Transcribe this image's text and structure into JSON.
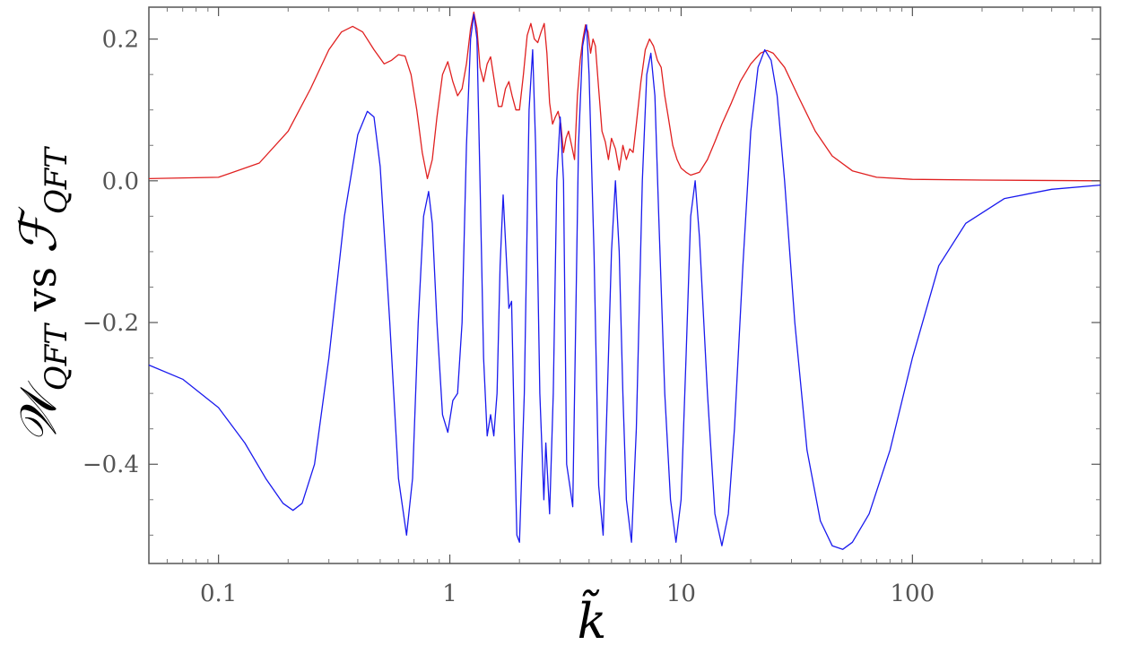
{
  "chart_data": {
    "type": "line",
    "x_scale": "log",
    "xlim": [
      0.05,
      650
    ],
    "ylim": [
      -0.54,
      0.245
    ],
    "xlabel": "k̃",
    "ylabel": {
      "w": "𝒲",
      "w_sub": "QFT",
      "vs": " vs ",
      "f": "ℱ",
      "f_sub": "QFT"
    },
    "x_ticks": [
      {
        "value": 0.1,
        "label": "0.1"
      },
      {
        "value": 1,
        "label": "1"
      },
      {
        "value": 10,
        "label": "10"
      },
      {
        "value": 100,
        "label": "100"
      }
    ],
    "y_ticks": [
      {
        "value": 0.2,
        "label": "0.2"
      },
      {
        "value": 0.0,
        "label": "0.0"
      },
      {
        "value": -0.2,
        "label": "−0.2"
      },
      {
        "value": -0.4,
        "label": "−0.4"
      }
    ],
    "grid": false,
    "series": [
      {
        "color": "#e02020",
        "points": [
          [
            0.05,
            0.003
          ],
          [
            0.1,
            0.005
          ],
          [
            0.15,
            0.025
          ],
          [
            0.2,
            0.07
          ],
          [
            0.25,
            0.13
          ],
          [
            0.3,
            0.185
          ],
          [
            0.34,
            0.21
          ],
          [
            0.38,
            0.218
          ],
          [
            0.42,
            0.21
          ],
          [
            0.47,
            0.185
          ],
          [
            0.52,
            0.165
          ],
          [
            0.56,
            0.17
          ],
          [
            0.6,
            0.178
          ],
          [
            0.64,
            0.176
          ],
          [
            0.68,
            0.15
          ],
          [
            0.72,
            0.1
          ],
          [
            0.76,
            0.04
          ],
          [
            0.8,
            0.003
          ],
          [
            0.84,
            0.03
          ],
          [
            0.88,
            0.09
          ],
          [
            0.93,
            0.15
          ],
          [
            0.98,
            0.168
          ],
          [
            1.03,
            0.14
          ],
          [
            1.08,
            0.12
          ],
          [
            1.13,
            0.13
          ],
          [
            1.18,
            0.165
          ],
          [
            1.23,
            0.215
          ],
          [
            1.27,
            0.238
          ],
          [
            1.31,
            0.215
          ],
          [
            1.35,
            0.16
          ],
          [
            1.4,
            0.14
          ],
          [
            1.45,
            0.165
          ],
          [
            1.5,
            0.175
          ],
          [
            1.56,
            0.14
          ],
          [
            1.62,
            0.105
          ],
          [
            1.68,
            0.105
          ],
          [
            1.74,
            0.13
          ],
          [
            1.8,
            0.14
          ],
          [
            1.86,
            0.12
          ],
          [
            1.93,
            0.1
          ],
          [
            2.0,
            0.1
          ],
          [
            2.08,
            0.15
          ],
          [
            2.16,
            0.205
          ],
          [
            2.24,
            0.222
          ],
          [
            2.32,
            0.2
          ],
          [
            2.4,
            0.195
          ],
          [
            2.48,
            0.21
          ],
          [
            2.56,
            0.222
          ],
          [
            2.63,
            0.18
          ],
          [
            2.7,
            0.11
          ],
          [
            2.78,
            0.08
          ],
          [
            2.86,
            0.09
          ],
          [
            2.94,
            0.098
          ],
          [
            3.02,
            0.08
          ],
          [
            3.1,
            0.04
          ],
          [
            3.18,
            0.06
          ],
          [
            3.26,
            0.07
          ],
          [
            3.36,
            0.05
          ],
          [
            3.46,
            0.03
          ],
          [
            3.56,
            0.12
          ],
          [
            3.66,
            0.17
          ],
          [
            3.76,
            0.2
          ],
          [
            3.86,
            0.22
          ],
          [
            3.96,
            0.21
          ],
          [
            4.06,
            0.18
          ],
          [
            4.16,
            0.2
          ],
          [
            4.26,
            0.19
          ],
          [
            4.4,
            0.13
          ],
          [
            4.55,
            0.07
          ],
          [
            4.7,
            0.055
          ],
          [
            4.85,
            0.03
          ],
          [
            5.0,
            0.06
          ],
          [
            5.2,
            0.045
          ],
          [
            5.4,
            0.015
          ],
          [
            5.6,
            0.05
          ],
          [
            5.8,
            0.03
          ],
          [
            6.0,
            0.045
          ],
          [
            6.2,
            0.04
          ],
          [
            6.4,
            0.08
          ],
          [
            6.7,
            0.14
          ],
          [
            7.0,
            0.185
          ],
          [
            7.3,
            0.2
          ],
          [
            7.6,
            0.19
          ],
          [
            7.9,
            0.17
          ],
          [
            8.2,
            0.16
          ],
          [
            8.5,
            0.12
          ],
          [
            8.8,
            0.09
          ],
          [
            9.2,
            0.05
          ],
          [
            9.6,
            0.03
          ],
          [
            10.0,
            0.018
          ],
          [
            10.5,
            0.012
          ],
          [
            11.0,
            0.008
          ],
          [
            11.5,
            0.01
          ],
          [
            12.0,
            0.012
          ],
          [
            13.0,
            0.03
          ],
          [
            14.0,
            0.055
          ],
          [
            15.0,
            0.08
          ],
          [
            16.5,
            0.11
          ],
          [
            18.0,
            0.14
          ],
          [
            20.0,
            0.165
          ],
          [
            22.0,
            0.18
          ],
          [
            23.5,
            0.184
          ],
          [
            25.0,
            0.18
          ],
          [
            28.0,
            0.16
          ],
          [
            32.0,
            0.12
          ],
          [
            38.0,
            0.07
          ],
          [
            45.0,
            0.035
          ],
          [
            55.0,
            0.014
          ],
          [
            70.0,
            0.005
          ],
          [
            100.0,
            0.002
          ],
          [
            200.0,
            0.001
          ],
          [
            650.0,
            0.0
          ]
        ]
      },
      {
        "color": "#1a1aee",
        "points": [
          [
            0.05,
            -0.26
          ],
          [
            0.07,
            -0.28
          ],
          [
            0.1,
            -0.32
          ],
          [
            0.13,
            -0.37
          ],
          [
            0.16,
            -0.42
          ],
          [
            0.19,
            -0.455
          ],
          [
            0.21,
            -0.465
          ],
          [
            0.23,
            -0.455
          ],
          [
            0.26,
            -0.4
          ],
          [
            0.3,
            -0.25
          ],
          [
            0.35,
            -0.05
          ],
          [
            0.4,
            0.065
          ],
          [
            0.44,
            0.098
          ],
          [
            0.47,
            0.09
          ],
          [
            0.5,
            0.02
          ],
          [
            0.55,
            -0.2
          ],
          [
            0.6,
            -0.42
          ],
          [
            0.65,
            -0.5
          ],
          [
            0.69,
            -0.42
          ],
          [
            0.73,
            -0.2
          ],
          [
            0.77,
            -0.05
          ],
          [
            0.81,
            -0.015
          ],
          [
            0.84,
            -0.06
          ],
          [
            0.88,
            -0.2
          ],
          [
            0.93,
            -0.33
          ],
          [
            0.98,
            -0.355
          ],
          [
            1.03,
            -0.31
          ],
          [
            1.08,
            -0.3
          ],
          [
            1.13,
            -0.2
          ],
          [
            1.18,
            0.05
          ],
          [
            1.23,
            0.2
          ],
          [
            1.27,
            0.235
          ],
          [
            1.31,
            0.2
          ],
          [
            1.35,
            0.0
          ],
          [
            1.4,
            -0.25
          ],
          [
            1.45,
            -0.36
          ],
          [
            1.5,
            -0.33
          ],
          [
            1.55,
            -0.36
          ],
          [
            1.6,
            -0.3
          ],
          [
            1.65,
            -0.12
          ],
          [
            1.7,
            -0.02
          ],
          [
            1.75,
            -0.1
          ],
          [
            1.8,
            -0.18
          ],
          [
            1.85,
            -0.17
          ],
          [
            1.9,
            -0.35
          ],
          [
            1.95,
            -0.5
          ],
          [
            2.0,
            -0.51
          ],
          [
            2.1,
            -0.3
          ],
          [
            2.2,
            0.1
          ],
          [
            2.28,
            0.185
          ],
          [
            2.35,
            0.05
          ],
          [
            2.45,
            -0.3
          ],
          [
            2.55,
            -0.45
          ],
          [
            2.6,
            -0.37
          ],
          [
            2.7,
            -0.47
          ],
          [
            2.8,
            -0.3
          ],
          [
            2.9,
            0.0
          ],
          [
            3.0,
            0.09
          ],
          [
            3.1,
            0.0
          ],
          [
            3.2,
            -0.4
          ],
          [
            3.3,
            -0.43
          ],
          [
            3.4,
            -0.46
          ],
          [
            3.5,
            -0.2
          ],
          [
            3.6,
            0.05
          ],
          [
            3.75,
            0.19
          ],
          [
            3.9,
            0.22
          ],
          [
            4.0,
            0.15
          ],
          [
            4.2,
            -0.1
          ],
          [
            4.4,
            -0.43
          ],
          [
            4.6,
            -0.5
          ],
          [
            4.8,
            -0.3
          ],
          [
            5.0,
            -0.1
          ],
          [
            5.2,
            0.0
          ],
          [
            5.4,
            -0.1
          ],
          [
            5.6,
            -0.3
          ],
          [
            5.8,
            -0.45
          ],
          [
            6.1,
            -0.51
          ],
          [
            6.4,
            -0.35
          ],
          [
            6.8,
            0.0
          ],
          [
            7.1,
            0.15
          ],
          [
            7.4,
            0.18
          ],
          [
            7.7,
            0.12
          ],
          [
            8.0,
            -0.05
          ],
          [
            8.5,
            -0.3
          ],
          [
            9.0,
            -0.45
          ],
          [
            9.5,
            -0.51
          ],
          [
            10.0,
            -0.45
          ],
          [
            10.5,
            -0.25
          ],
          [
            11.0,
            -0.05
          ],
          [
            11.5,
            0.0
          ],
          [
            12.0,
            -0.08
          ],
          [
            13.0,
            -0.3
          ],
          [
            14.0,
            -0.47
          ],
          [
            15.0,
            -0.515
          ],
          [
            16.0,
            -0.47
          ],
          [
            17.0,
            -0.35
          ],
          [
            18.5,
            -0.12
          ],
          [
            20.0,
            0.07
          ],
          [
            21.5,
            0.16
          ],
          [
            23.0,
            0.185
          ],
          [
            24.5,
            0.17
          ],
          [
            26.0,
            0.12
          ],
          [
            28.0,
            0.0
          ],
          [
            31.0,
            -0.2
          ],
          [
            35.0,
            -0.38
          ],
          [
            40.0,
            -0.48
          ],
          [
            45.0,
            -0.515
          ],
          [
            50.0,
            -0.52
          ],
          [
            55.0,
            -0.51
          ],
          [
            65.0,
            -0.47
          ],
          [
            80.0,
            -0.38
          ],
          [
            100.0,
            -0.25
          ],
          [
            130.0,
            -0.12
          ],
          [
            170.0,
            -0.06
          ],
          [
            250.0,
            -0.025
          ],
          [
            400.0,
            -0.012
          ],
          [
            650.0,
            -0.006
          ]
        ]
      }
    ]
  }
}
